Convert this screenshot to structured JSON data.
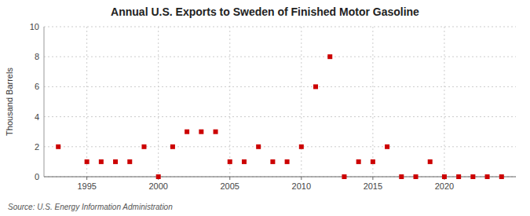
{
  "chart_data": {
    "type": "scatter",
    "title": "Annual U.S. Exports to Sweden of Finished Motor Gasoline",
    "y_label": "Thousand Barrels",
    "source": "Source: U.S. Energy Information Administration",
    "x": [
      1993,
      1995,
      1996,
      1997,
      1998,
      1999,
      2000,
      2001,
      2002,
      2003,
      2004,
      2005,
      2006,
      2007,
      2008,
      2009,
      2010,
      2011,
      2012,
      2013,
      2014,
      2015,
      2016,
      2017,
      2018,
      2019,
      2020,
      2021,
      2022,
      2023,
      2024
    ],
    "values": [
      2,
      1,
      1,
      1,
      1,
      2,
      0,
      2,
      3,
      3,
      3,
      1,
      1,
      2,
      1,
      1,
      2,
      6,
      8,
      0,
      1,
      1,
      2,
      0,
      0,
      1,
      0,
      0,
      0,
      0,
      0
    ],
    "color": "#cc0000",
    "marker": "square",
    "xlim": [
      1992,
      2025
    ],
    "ylim": [
      0,
      10
    ],
    "xticks": [
      1995,
      2000,
      2005,
      2010,
      2015,
      2020
    ],
    "yticks": [
      0,
      2,
      4,
      6,
      8,
      10
    ],
    "grid": true
  }
}
